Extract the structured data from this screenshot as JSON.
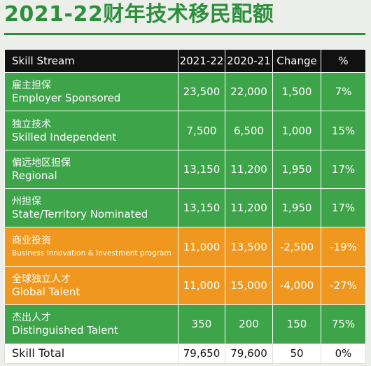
{
  "title": "2021-22财年技术移民配额",
  "table": {
    "headers": {
      "stream": "Skill Stream",
      "y2122": "2021-22",
      "y2021": "2020-21",
      "change": "Change",
      "pct": "%"
    },
    "rows": [
      {
        "zh": "雇主担保",
        "en": "Employer Sponsored",
        "y2122": "23,500",
        "y2021": "22,000",
        "change": "1,500",
        "pct": "7%",
        "style": "green"
      },
      {
        "zh": "独立技术",
        "en": "Skilled Independent",
        "y2122": "7,500",
        "y2021": "6,500",
        "change": "1,000",
        "pct": "15%",
        "style": "green"
      },
      {
        "zh": "偏远地区担保",
        "en": "Regional",
        "y2122": "13,150",
        "y2021": "11,200",
        "change": "1,950",
        "pct": "17%",
        "style": "green"
      },
      {
        "zh": "州担保",
        "en": "State/Territory Nominated",
        "y2122": "13,150",
        "y2021": "11,200",
        "change": "1,950",
        "pct": "17%",
        "style": "green"
      },
      {
        "zh": "商业投资",
        "en": "Business Innovation & Investment program",
        "y2122": "11,000",
        "y2021": "13,500",
        "change": "-2,500",
        "pct": "-19%",
        "style": "orange"
      },
      {
        "zh": "全球独立人才",
        "en": "Global Talent",
        "y2122": "11,000",
        "y2021": "15,000",
        "change": "-4,000",
        "pct": "-27%",
        "style": "orange"
      },
      {
        "zh": "杰出人才",
        "en": "Distinguished Talent",
        "y2122": "350",
        "y2021": "200",
        "change": "150",
        "pct": "75%",
        "style": "green"
      }
    ],
    "total": {
      "label": "Skill Total",
      "y2122": "79,650",
      "y2021": "79,600",
      "change": "50",
      "pct": "0%"
    }
  },
  "colors": {
    "title_green": "#2c8f3c",
    "row_green": "#3ea44a",
    "row_orange": "#f0971f",
    "header_black": "#111111"
  }
}
